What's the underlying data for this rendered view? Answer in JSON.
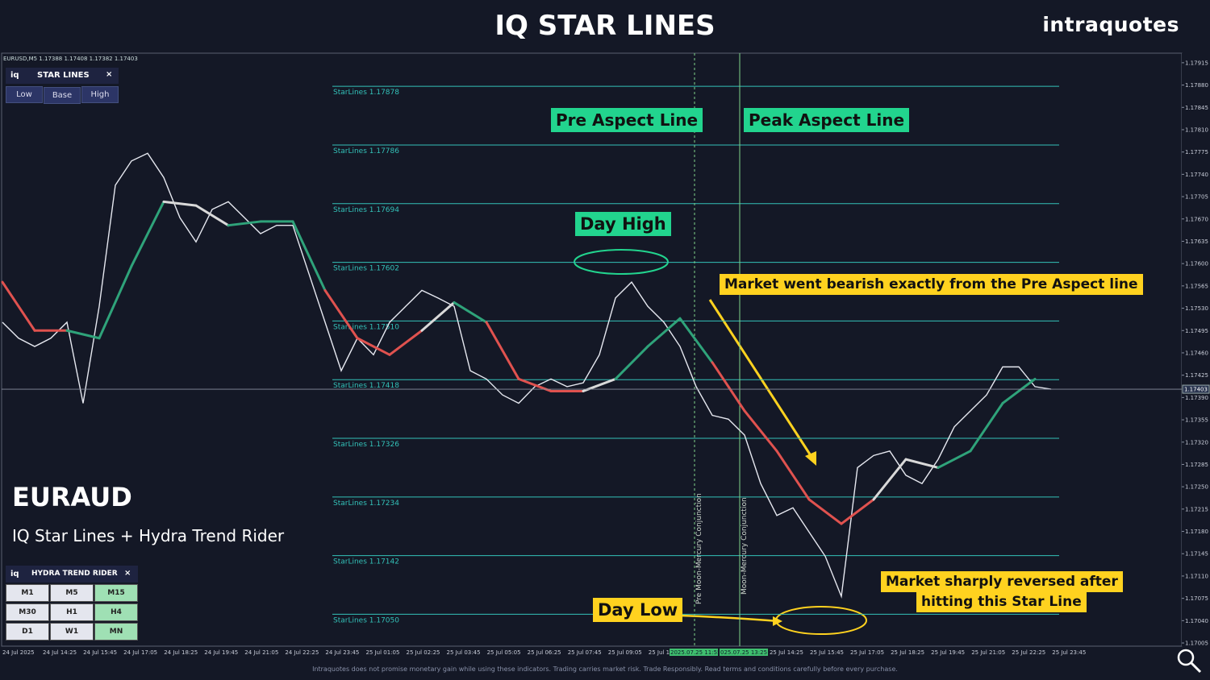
{
  "header": {
    "title": "IQ STAR LINES",
    "brand": "intraquotes"
  },
  "symbol_info": "EURUSD,M5 1.17388 1.17408 1.17382 1.17403",
  "star_panel": {
    "logo": "iq",
    "title": "STAR LINES",
    "close": "×",
    "buttons": [
      "Low",
      "Base",
      "High"
    ]
  },
  "overlay": {
    "pair": "EURAUD",
    "subtitle": "IQ Star Lines + Hydra Trend Rider"
  },
  "hydra_panel": {
    "logo": "iq",
    "title": "HYDRA TREND RIDER",
    "close": "×",
    "timeframes": [
      [
        "M1",
        "M5",
        "M15"
      ],
      [
        "M30",
        "H1",
        "H4"
      ],
      [
        "D1",
        "W1",
        "MN"
      ]
    ],
    "active": [
      [
        false,
        false,
        true
      ],
      [
        false,
        false,
        true
      ],
      [
        false,
        false,
        true
      ]
    ],
    "active_color": "#9fe0b4",
    "idle_color": "#e4e6ee"
  },
  "annotations": {
    "pre_aspect": "Pre Aspect Line",
    "peak_aspect": "Peak Aspect Line",
    "day_high": "Day High",
    "bearish": "Market went bearish exactly from the Pre Aspect line",
    "reversed": [
      "Market sharply reversed after",
      "hitting this Star Line"
    ],
    "day_low": "Day Low"
  },
  "chart_data": {
    "type": "line",
    "ylim": [
      1.17,
      1.1793
    ],
    "yticks": [
      1.17915,
      {
        "value": 1.1788,
        "label": "1.17880"
      },
      1.17845,
      {
        "value": 1.1781,
        "label": "1.17810"
      },
      1.17775,
      {
        "value": 1.1774,
        "label": "1.17740"
      },
      1.17705,
      {
        "value": 1.1767,
        "label": "1.17670"
      },
      1.17635,
      {
        "value": 1.176,
        "label": "1.17600"
      },
      1.17565,
      {
        "value": 1.1753,
        "label": "1.17530"
      },
      1.17495,
      {
        "value": 1.1746,
        "label": "1.17460"
      },
      1.17425,
      {
        "value": 1.1739,
        "label": "1.17390"
      },
      1.17355,
      {
        "value": 1.1732,
        "label": "1.17320"
      },
      1.17285,
      {
        "value": 1.1725,
        "label": "1.17250"
      },
      1.17215,
      {
        "value": 1.1718,
        "label": "1.17180"
      },
      1.17145,
      {
        "value": 1.1711,
        "label": "1.17110"
      },
      1.17075,
      {
        "value": 1.1704,
        "label": "1.17040"
      },
      1.17005
    ],
    "current_price": 1.17403,
    "star_lines": [
      {
        "label": "StarLines 1.17878",
        "value": 1.17878
      },
      {
        "label": "StarLines 1.17786",
        "value": 1.17786
      },
      {
        "label": "StarLines 1.17694",
        "value": 1.17694
      },
      {
        "label": "StarLines 1.17602",
        "value": 1.17602
      },
      {
        "label": "StarLines 1.17510",
        "value": 1.1751
      },
      {
        "label": "StarLines 1.17418",
        "value": 1.17418
      },
      {
        "label": "StarLines 1.17326",
        "value": 1.17326
      },
      {
        "label": "StarLines 1.17234",
        "value": 1.17234
      },
      {
        "label": "StarLines 1.17142",
        "value": 1.17142
      },
      {
        "label": "StarLines 1.17050",
        "value": 1.1705
      }
    ],
    "star_color": "#33c1b8",
    "x_labels": [
      "24 Jul 2025",
      "24 Jul 14:25",
      "24 Jul 15:45",
      "24 Jul 17:05",
      "24 Jul 18:25",
      "24 Jul 19:45",
      "24 Jul 21:05",
      "24 Jul 22:25",
      "24 Jul 23:45",
      "25 Jul 01:05",
      "25 Jul 02:25",
      "25 Jul 03:45",
      "25 Jul 05:05",
      "25 Jul 06:25",
      "25 Jul 07:45",
      "25 Jul 09:05",
      "25 Jul 1",
      null,
      null,
      "25 Jul 14:25",
      "25 Jul 15:45",
      "25 Jul 17:05",
      "25 Jul 18:25",
      "25 Jul 19:45",
      "25 Jul 21:05",
      "25 Jul 22:25",
      "25 Jul 23:45"
    ],
    "x_highlight": [
      "2025.07.25 11:55",
      "025.07.25 13:25"
    ],
    "vlines": [
      {
        "label": "Pre Moon-Mercury Conjunction",
        "color": "#7fd38a",
        "dashed": true
      },
      {
        "label": "Moon-Mercury Conjunction",
        "color": "#7fd38a",
        "dashed": false
      }
    ],
    "price": {
      "color": "#e6e8f0",
      "values": [
        1.17508,
        1.17483,
        1.1747,
        1.17483,
        1.17508,
        1.17381,
        1.17533,
        1.17723,
        1.17761,
        1.17773,
        1.17735,
        1.17672,
        1.17634,
        1.17685,
        1.17697,
        1.17672,
        1.17647,
        1.1766,
        1.1766,
        1.17584,
        1.17508,
        1.17432,
        1.17483,
        1.17457,
        1.17508,
        1.17533,
        1.17558,
        1.17546,
        1.17533,
        1.17432,
        1.17419,
        1.17394,
        1.17381,
        1.17407,
        1.17419,
        1.17407,
        1.17413,
        1.17457,
        1.17546,
        1.17571,
        1.17533,
        1.17508,
        1.1747,
        1.17407,
        1.17362,
        1.17356,
        1.17331,
        1.17255,
        1.17205,
        1.17217,
        1.17179,
        1.17141,
        1.17078,
        1.1728,
        1.17299,
        1.17306,
        1.17268,
        1.17255,
        1.17293,
        1.17344,
        1.17369,
        1.17394,
        1.17438,
        1.17438,
        1.17407,
        1.17403
      ]
    },
    "trend": {
      "values": [
        1.17571,
        1.17495,
        1.17495,
        1.17483,
        1.17596,
        1.17697,
        1.17691,
        1.1766,
        1.17666,
        1.17666,
        1.17558,
        1.17483,
        1.17457,
        1.17495,
        1.17539,
        1.17508,
        1.17419,
        1.174,
        1.174,
        1.17419,
        1.1747,
        1.17514,
        1.17445,
        1.17369,
        1.17306,
        1.1723,
        1.17192,
        1.1723,
        1.17293,
        1.1728,
        1.17306,
        1.17381,
        1.17419
      ],
      "segment_colors": [
        "#e0524f",
        "#e0524f",
        "#2fa37a",
        "#2fa37a",
        "#2fa37a",
        "#d9d9d9",
        "#d9d9d9",
        "#2fa37a",
        "#2fa37a",
        "#2fa37a",
        "#e0524f",
        "#e0524f",
        "#e0524f",
        "#d9d9d9",
        "#2fa37a",
        "#e0524f",
        "#e0524f",
        "#e0524f",
        "#d9d9d9",
        "#2fa37a",
        "#2fa37a",
        "#2fa37a",
        "#e0524f",
        "#e0524f",
        "#e0524f",
        "#e0524f",
        "#e0524f",
        "#d9d9d9",
        "#d9d9d9",
        "#2fa37a",
        "#2fa37a",
        "#2fa37a"
      ]
    }
  },
  "disclaimer": "Intraquotes does not promise monetary gain while using these indicators. Trading carries market risk. Trade Responsibly. Read terms and conditions carefully before every purchase."
}
